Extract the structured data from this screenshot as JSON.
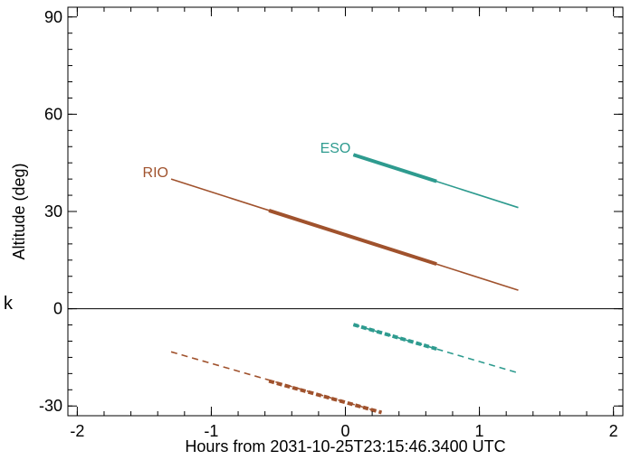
{
  "chart_data": {
    "type": "line",
    "title": "",
    "xlabel": "Hours from 2031-10-25T23:15:46.3400 UTC",
    "ylabel": "Altitude (deg)",
    "xlim": [
      -2.07,
      2.07
    ],
    "ylim": [
      -33,
      93
    ],
    "grid": false,
    "x_ticks": [
      -2,
      -1,
      0,
      1,
      2
    ],
    "x_tick_labels": [
      "-2",
      "-1",
      "0",
      "1",
      "2"
    ],
    "y_ticks": [
      -30,
      0,
      30,
      60,
      90
    ],
    "y_tick_labels": [
      "-30",
      "0",
      "30",
      "60",
      "90"
    ],
    "zero_line": 0,
    "stray_label": "k",
    "series": [
      {
        "name": "RIO",
        "color": "#a0522d",
        "segments": [
          {
            "style": "solid",
            "weight": "thin",
            "x": [
              -1.3,
              1.29
            ],
            "y": [
              40,
              5.7
            ]
          },
          {
            "style": "solid",
            "weight": "thick",
            "x": [
              -0.57,
              0.68
            ],
            "y": [
              30.3,
              13.8
            ]
          },
          {
            "style": "dashed",
            "weight": "thin",
            "x": [
              -1.3,
              0.27
            ],
            "y": [
              -13.3,
              -32
            ]
          },
          {
            "style": "dashed",
            "weight": "thick",
            "x": [
              -0.57,
              0.27
            ],
            "y": [
              -22.3,
              -32
            ]
          }
        ]
      },
      {
        "name": "ESO",
        "color": "#2e9b8f",
        "segments": [
          {
            "style": "solid",
            "weight": "thin",
            "x": [
              0.06,
              1.29
            ],
            "y": [
              47.5,
              31.2
            ]
          },
          {
            "style": "solid",
            "weight": "thick",
            "x": [
              0.06,
              0.68
            ],
            "y": [
              47.5,
              39.3
            ]
          },
          {
            "style": "dashed",
            "weight": "thin",
            "x": [
              0.06,
              1.29
            ],
            "y": [
              -4.9,
              -19.8
            ]
          },
          {
            "style": "dashed",
            "weight": "thick",
            "x": [
              0.06,
              0.68
            ],
            "y": [
              -4.9,
              -12.4
            ]
          }
        ]
      }
    ]
  }
}
